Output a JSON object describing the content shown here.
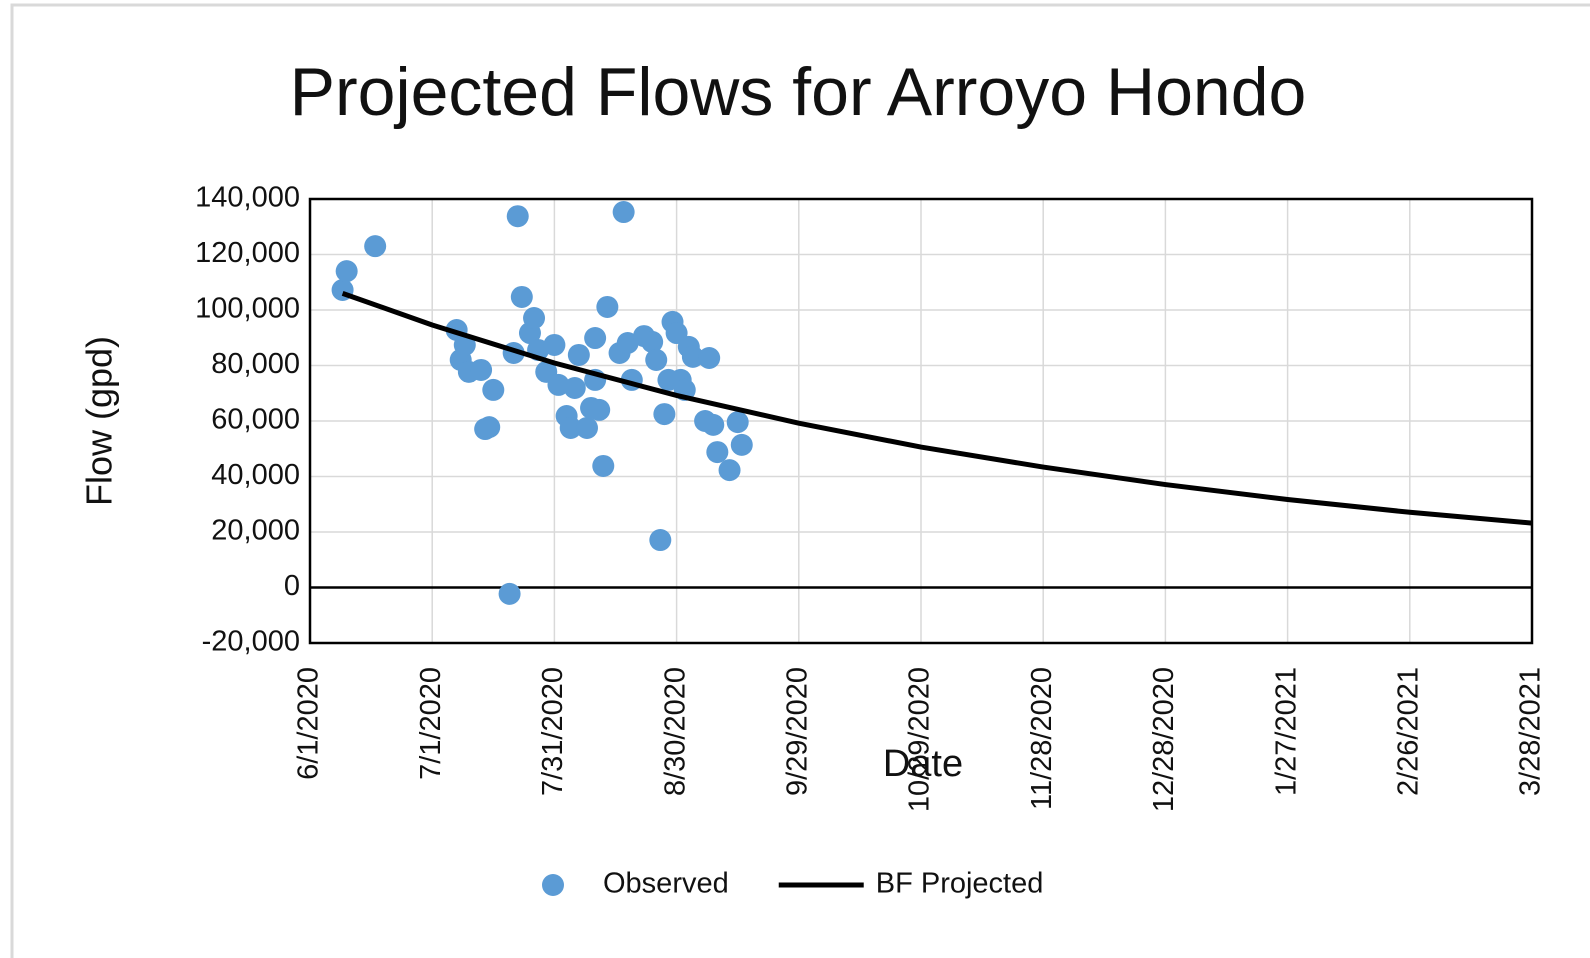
{
  "chart_data": {
    "type": "scatter",
    "title": "Projected Flows for Arroyo Hondo",
    "x_label": "Date",
    "y_label": "Flow (gpd)",
    "xlim": [
      "6/1/2020",
      "3/28/2021"
    ],
    "xticks": [
      "6/1/2020",
      "7/1/2020",
      "7/31/2020",
      "8/30/2020",
      "9/29/2020",
      "10/29/2020",
      "11/28/2020",
      "12/28/2020",
      "1/27/2021",
      "2/26/2021",
      "3/28/2021"
    ],
    "ylim": [
      -20000,
      140000
    ],
    "yticks": [
      {
        "value": -20000,
        "label": "-20,000"
      },
      0,
      {
        "value": 20000,
        "label": "20,000"
      },
      {
        "value": 40000,
        "label": "40,000"
      },
      {
        "value": 60000,
        "label": "60,000"
      },
      {
        "value": 80000,
        "label": "80,000"
      },
      {
        "value": 100000,
        "label": "100,000"
      },
      {
        "value": 120000,
        "label": "120,000"
      },
      {
        "value": 140000,
        "label": "140,000"
      }
    ],
    "grid": true,
    "legend": "bottom",
    "series": [
      {
        "name": "Observed",
        "type": "scatter",
        "color": "#5b9bd5",
        "x": [
          "6/9/2020",
          "6/10/2020",
          "6/17/2020",
          "7/7/2020",
          "7/8/2020",
          "7/9/2020",
          "7/10/2020",
          "7/13/2020",
          "7/14/2020",
          "7/15/2020",
          "7/16/2020",
          "7/20/2020",
          "7/21/2020",
          "7/22/2020",
          "7/23/2020",
          "7/25/2020",
          "7/26/2020",
          "7/27/2020",
          "7/29/2020",
          "7/31/2020",
          "8/1/2020",
          "8/3/2020",
          "8/4/2020",
          "8/5/2020",
          "8/6/2020",
          "8/8/2020",
          "8/9/2020",
          "8/10/2020",
          "8/10/2020",
          "8/11/2020",
          "8/12/2020",
          "8/13/2020",
          "8/16/2020",
          "8/17/2020",
          "8/18/2020",
          "8/19/2020",
          "8/22/2020",
          "8/24/2020",
          "8/25/2020",
          "8/26/2020",
          "8/27/2020",
          "8/28/2020",
          "8/29/2020",
          "8/30/2020",
          "8/31/2020",
          "9/1/2020",
          "9/2/2020",
          "9/3/2020",
          "9/6/2020",
          "9/7/2020",
          "9/8/2020",
          "9/9/2020",
          "9/12/2020",
          "9/14/2020",
          "9/15/2020"
        ],
        "values": [
          107200,
          114000,
          123000,
          92800,
          82000,
          87400,
          77700,
          78400,
          57100,
          57800,
          71200,
          -2300,
          84500,
          133800,
          104700,
          91700,
          97100,
          85600,
          77700,
          87400,
          73000,
          61800,
          57500,
          71900,
          83800,
          57500,
          64700,
          74800,
          89900,
          64000,
          43800,
          101100,
          84500,
          135300,
          88100,
          74800,
          90600,
          88500,
          82000,
          17100,
          62500,
          74800,
          95700,
          91700,
          74800,
          71200,
          86700,
          83100,
          60000,
          82700,
          58600,
          48800,
          42300,
          59600,
          51400
        ]
      },
      {
        "name": "BF Projected",
        "type": "line",
        "color": "#000000",
        "x": [
          "6/9/2020",
          "7/1/2020",
          "7/31/2020",
          "8/30/2020",
          "9/29/2020",
          "10/29/2020",
          "11/28/2020",
          "12/28/2020",
          "1/27/2021",
          "2/26/2021",
          "3/28/2021"
        ],
        "values": [
          106000,
          94600,
          80900,
          69200,
          59200,
          50600,
          43400,
          37100,
          31700,
          27100,
          23200
        ]
      }
    ]
  }
}
